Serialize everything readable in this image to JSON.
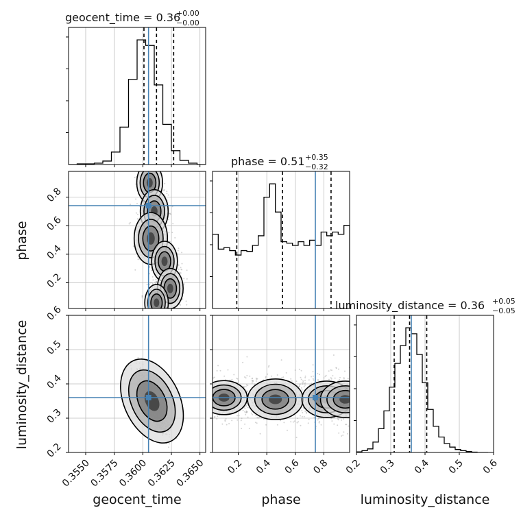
{
  "chart_data": {
    "type": "corner",
    "parameters": [
      {
        "key": "geocent_time",
        "label": "geocent_time",
        "title": "geocent_time = 0.36",
        "title_sup": "+0.00",
        "title_sub": "−0.00",
        "range": [
          0.3535,
          0.3655
        ],
        "ticks": [
          0.355,
          0.3575,
          0.36,
          0.3625,
          0.365
        ],
        "tick_labels": [
          "0.3550",
          "0.3575",
          "0.3600",
          "0.3625",
          "0.3650"
        ],
        "truth": 0.3605,
        "quantiles": [
          0.3601,
          0.3612,
          0.3627
        ],
        "hist": {
          "edges": [
            0.3535,
            0.35425,
            0.355,
            0.35575,
            0.3565,
            0.35725,
            0.358,
            0.35875,
            0.3595,
            0.36025,
            0.361,
            0.36175,
            0.3625,
            0.36325,
            0.364,
            0.36475,
            0.3655
          ],
          "counts": [
            0,
            1,
            1,
            2,
            5,
            18,
            54,
            123,
            180,
            172,
            115,
            58,
            20,
            6,
            2,
            0
          ]
        }
      },
      {
        "key": "phase",
        "label": "phase",
        "title": "phase = 0.51",
        "title_sup": "+0.35",
        "title_sub": "−0.32",
        "range": [
          0.02,
          0.98
        ],
        "ticks": [
          0.2,
          0.4,
          0.6,
          0.8
        ],
        "tick_labels": [
          "0.2",
          "0.4",
          "0.6",
          "0.8"
        ],
        "truth": 0.74,
        "quantiles": [
          0.19,
          0.51,
          0.85
        ],
        "hist": {
          "edges": [
            0.02,
            0.06,
            0.1,
            0.14,
            0.18,
            0.22,
            0.26,
            0.3,
            0.34,
            0.38,
            0.42,
            0.46,
            0.5,
            0.54,
            0.58,
            0.62,
            0.66,
            0.7,
            0.74,
            0.78,
            0.82,
            0.86,
            0.9,
            0.94,
            0.98
          ],
          "counts": [
            100,
            80,
            82,
            78,
            72,
            78,
            77,
            85,
            98,
            150,
            168,
            130,
            90,
            88,
            85,
            90,
            85,
            92,
            85,
            103,
            98,
            103,
            100,
            112
          ]
        }
      },
      {
        "key": "luminosity_distance",
        "label": "luminosity_distance",
        "title": "luminosity_distance = 0.36",
        "title_sup": "+0.05",
        "title_sub": "−0.05",
        "range": [
          0.2,
          0.6
        ],
        "ticks": [
          0.2,
          0.3,
          0.4,
          0.5,
          0.6
        ],
        "tick_labels": [
          "0.2",
          "0.3",
          "0.4",
          "0.5",
          "0.6"
        ],
        "truth": 0.36,
        "quantiles": [
          0.31,
          0.355,
          0.405
        ],
        "hist": {
          "edges": [
            0.2,
            0.216,
            0.232,
            0.248,
            0.264,
            0.28,
            0.296,
            0.312,
            0.328,
            0.344,
            0.36,
            0.376,
            0.392,
            0.408,
            0.424,
            0.44,
            0.456,
            0.472,
            0.488,
            0.504,
            0.52,
            0.536,
            0.552,
            0.568,
            0.584
          ],
          "counts": [
            2,
            6,
            12,
            35,
            80,
            140,
            220,
            300,
            360,
            420,
            400,
            330,
            235,
            145,
            88,
            52,
            30,
            18,
            10,
            6,
            3,
            1,
            0,
            0
          ]
        }
      }
    ],
    "pair_panels": [
      {
        "x": "geocent_time",
        "y": "phase",
        "truth": [
          0.3605,
          0.74
        ],
        "density_peaks": [
          {
            "x": 0.3606,
            "y": 0.9,
            "weight": 0.6
          },
          {
            "x": 0.361,
            "y": 0.7,
            "weight": 0.7
          },
          {
            "x": 0.3607,
            "y": 0.51,
            "weight": 1.0
          },
          {
            "x": 0.3619,
            "y": 0.35,
            "weight": 0.6
          },
          {
            "x": 0.3624,
            "y": 0.16,
            "weight": 0.6
          },
          {
            "x": 0.3612,
            "y": 0.06,
            "weight": 0.5
          }
        ]
      },
      {
        "x": "geocent_time",
        "y": "luminosity_distance",
        "truth": [
          0.3605,
          0.36
        ],
        "density_peaks": [
          {
            "x": 0.3608,
            "y": 0.35,
            "weight": 1.0
          }
        ]
      },
      {
        "x": "phase",
        "y": "luminosity_distance",
        "truth": [
          0.74,
          0.36
        ],
        "density_peaks": [
          {
            "x": 0.46,
            "y": 0.355,
            "weight": 1.0
          },
          {
            "x": 0.1,
            "y": 0.36,
            "weight": 0.7
          },
          {
            "x": 0.82,
            "y": 0.355,
            "weight": 0.8
          },
          {
            "x": 0.95,
            "y": 0.355,
            "weight": 0.8
          }
        ]
      }
    ],
    "grid": true,
    "colors": {
      "truth": "#4682b4",
      "contour": "#000000",
      "scatter": "#9e9e9e"
    }
  }
}
